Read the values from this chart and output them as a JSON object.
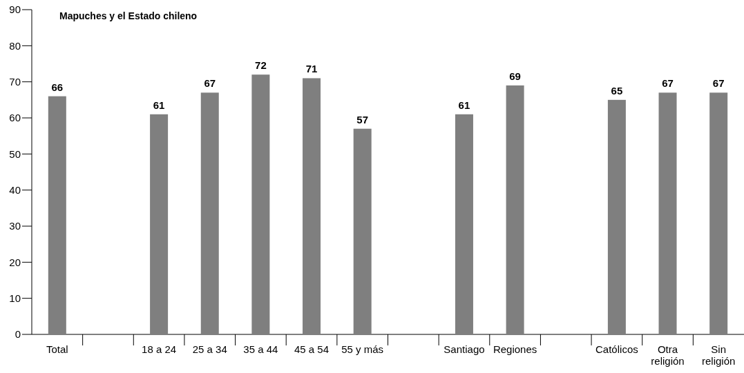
{
  "chart_data": {
    "type": "bar",
    "title": "Mapuches y el Estado chileno",
    "categories": [
      "Total",
      null,
      "18 a 24",
      "25 a 34",
      "35 a 44",
      "45 a 54",
      "55 y más",
      null,
      "Santiago",
      "Regiones",
      null,
      "Católicos",
      "Otra religión",
      "Sin religión"
    ],
    "values": [
      66,
      null,
      61,
      67,
      72,
      71,
      57,
      null,
      61,
      69,
      null,
      65,
      67,
      67
    ],
    "color": "#7f7f7f",
    "ylim": [
      0,
      90
    ],
    "yticks": [
      0,
      10,
      20,
      30,
      40,
      50,
      60,
      70,
      80,
      90
    ],
    "grid": false,
    "data_labels": true
  }
}
